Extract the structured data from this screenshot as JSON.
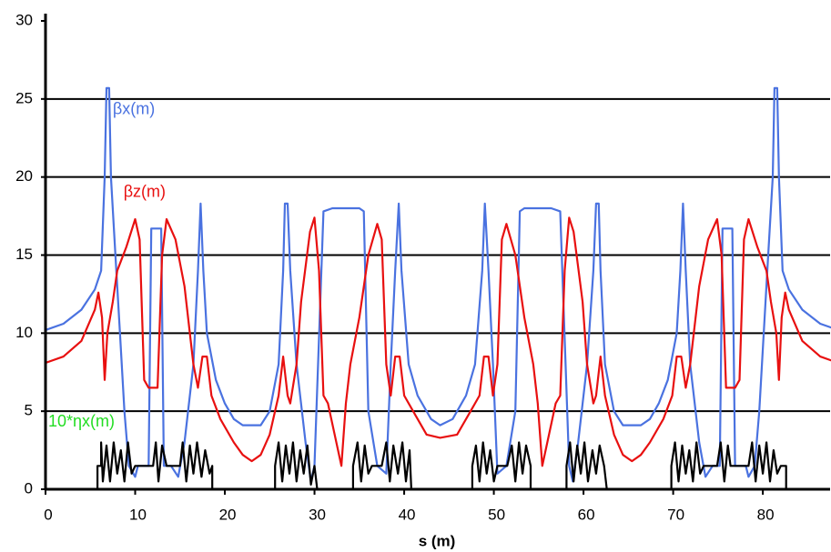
{
  "chart_data": {
    "type": "line",
    "x_label": "s (m)",
    "xlim": [
      0,
      87.5
    ],
    "ylim": [
      0,
      30
    ],
    "xticks": [
      0,
      10,
      20,
      30,
      40,
      50,
      60,
      70,
      80
    ],
    "yticks": [
      0,
      5,
      10,
      15,
      20,
      25,
      30
    ],
    "grid": true,
    "annotations": [
      {
        "text": "βx(m)",
        "color": "#4a72e0",
        "x": 7.5,
        "y": 24.3
      },
      {
        "text": "βz(m)",
        "color": "#e81010",
        "x": 8.7,
        "y": 19
      },
      {
        "text": "10*ηx(m)",
        "color": "#22dd22",
        "x": 0.3,
        "y": 4.3
      }
    ],
    "series": [
      {
        "color": "#4a72e0",
        "x": [
          0,
          2,
          4,
          5.5,
          6.2,
          6.6,
          6.8,
          7.1,
          7.3,
          7.8,
          8.3,
          8.8,
          9.3,
          10,
          10.3,
          11.5,
          11.8,
          12.9,
          13.2,
          14,
          14.8,
          15.5,
          16.5,
          17,
          17.3,
          17.6,
          18,
          19,
          20,
          21,
          22,
          24,
          25,
          26,
          26.5,
          26.7,
          27,
          27.3,
          28,
          29,
          29.6,
          30,
          31,
          32,
          35,
          35.5,
          36,
          37,
          38,
          38.5,
          39,
          39.4,
          39.7,
          40.5,
          41.5,
          43,
          44,
          45.4,
          46.9,
          47.9,
          48.7,
          49,
          49.4,
          49.9,
          50.4,
          51.4,
          52.4,
          52.9,
          53.4,
          56.4,
          57.4,
          58.4,
          58.8,
          59.4,
          60.4,
          61.1,
          61.4,
          61.7,
          61.9,
          62.4,
          63.4,
          64.4,
          66.4,
          67.4,
          68.4,
          69.4,
          70.4,
          70.8,
          71.1,
          71.4,
          71.9,
          72.9,
          73.6,
          74.4,
          75.2,
          75.5,
          76.6,
          76.9,
          78.1,
          78.4,
          79.1,
          79.6,
          80.1,
          80.6,
          81.1,
          81.3,
          81.6,
          81.8,
          82.2,
          82.9,
          84.4,
          86.4,
          88.4
        ],
        "values": [
          10.2,
          10.6,
          11.5,
          12.8,
          14,
          20,
          25.7,
          25.7,
          20,
          15,
          10,
          5,
          1.5,
          0.8,
          1.5,
          1.5,
          16.7,
          16.7,
          1.5,
          1.5,
          0.8,
          3,
          8,
          14,
          18.3,
          14,
          10,
          7,
          5.5,
          4.5,
          4.1,
          4.1,
          5,
          8,
          14,
          18.3,
          18.3,
          14,
          8,
          3,
          0.5,
          1.5,
          17.8,
          18,
          18,
          17.8,
          5,
          1.5,
          1,
          8,
          14,
          18.3,
          14,
          8,
          6,
          4.5,
          4.1,
          4.5,
          6,
          8,
          14,
          18.3,
          14,
          8,
          1,
          1.5,
          5,
          17.8,
          18,
          18,
          17.8,
          1.5,
          0.5,
          3,
          8,
          14,
          18.3,
          18.3,
          14,
          8,
          5,
          4.1,
          4.1,
          4.5,
          5.5,
          7,
          10,
          14,
          18.3,
          14,
          8,
          3,
          0.8,
          1.5,
          1.5,
          16.7,
          16.7,
          1.5,
          1.5,
          0.8,
          1.5,
          5,
          10,
          15,
          20,
          25.7,
          25.7,
          20,
          14,
          12.8,
          11.5,
          10.6,
          10.2
        ]
      },
      {
        "color": "#e81010",
        "x": [
          0,
          2,
          4,
          5.5,
          5.9,
          6.3,
          6.6,
          6.9,
          7.5,
          8,
          9,
          10,
          10.5,
          11,
          11.5,
          12.5,
          13,
          13.5,
          14.5,
          15.5,
          16.5,
          17,
          17.5,
          18,
          18.5,
          19.5,
          21,
          22,
          23,
          24,
          25,
          26,
          26.5,
          27,
          27.3,
          28,
          28.5,
          29.5,
          30,
          30.5,
          31,
          31.5,
          33,
          33.5,
          34,
          35,
          36,
          37,
          37.5,
          38,
          38.5,
          39,
          39.5,
          40,
          41,
          42.5,
          44,
          45.9,
          47.4,
          48.4,
          48.9,
          49.4,
          49.9,
          50.4,
          50.9,
          51.4,
          52.4,
          53.4,
          54.4,
          54.9,
          55.4,
          56.9,
          57.4,
          57.9,
          58.4,
          58.9,
          59.9,
          60.4,
          61.1,
          61.4,
          61.9,
          62.4,
          63.4,
          64.4,
          65.4,
          66.4,
          67.4,
          68.9,
          69.9,
          70.4,
          70.9,
          71.4,
          71.9,
          72.9,
          73.9,
          74.9,
          75.4,
          75.9,
          76.9,
          77.4,
          77.9,
          78.4,
          79.4,
          80.4,
          80.9,
          81.5,
          81.8,
          82.1,
          82.5,
          82.9,
          84.4,
          86.4,
          88.4
        ],
        "values": [
          8.1,
          8.5,
          9.5,
          11.5,
          12.6,
          11,
          7,
          10,
          12,
          14,
          15.5,
          17.3,
          16,
          7,
          6.5,
          6.5,
          15,
          17.3,
          16,
          13,
          8,
          6.5,
          8.5,
          8.5,
          6,
          4.5,
          3,
          2.2,
          1.8,
          2.2,
          3.5,
          6,
          8.5,
          6,
          5.5,
          8,
          12,
          16.5,
          17.4,
          14,
          6,
          5.5,
          1.5,
          5.5,
          8,
          11,
          15,
          17,
          16,
          8,
          6,
          8.5,
          8.5,
          6,
          5,
          3.5,
          3.3,
          3.5,
          5,
          6,
          8.5,
          8.5,
          6,
          8,
          16,
          17,
          15,
          11,
          8,
          5.5,
          1.5,
          5.5,
          6,
          14,
          17.4,
          16.5,
          12,
          8,
          5.5,
          6,
          8.5,
          6,
          3.5,
          2.2,
          1.8,
          2.2,
          3,
          4.5,
          6,
          8.5,
          8.5,
          6.5,
          8,
          13,
          16,
          17.3,
          15,
          6.5,
          6.5,
          7,
          16,
          17.3,
          15.5,
          14,
          12,
          10,
          7,
          11,
          12.6,
          11.5,
          9.5,
          8.5,
          8.1
        ]
      },
      {
        "color": "#000000",
        "x": [
          0,
          5.8,
          5.8,
          6.2,
          6.2,
          6.4,
          6.8,
          7.2,
          7.6,
          8,
          8.4,
          8.8,
          9.2,
          9.6,
          10,
          12,
          12.3,
          12.6,
          13,
          13.5,
          15,
          15.3,
          15.7,
          16.1,
          16.5,
          16.9,
          17.4,
          17.8,
          18.3,
          18.6,
          18.6,
          25.6,
          25.6,
          26,
          26.4,
          26.8,
          27.2,
          27.6,
          28,
          28.4,
          28.8,
          29.2,
          29.6,
          30,
          30.3,
          34.3,
          34.3,
          34.8,
          35.2,
          35.6,
          36,
          36.4,
          37.5,
          38,
          38.4,
          38.8,
          39.3,
          39.8,
          40.2,
          40.6,
          40.8,
          47.6,
          47.6,
          48,
          48.4,
          48.8,
          49.2,
          49.6,
          50,
          50.4,
          51.5,
          52,
          52.4,
          52.8,
          53.2,
          53.6,
          54.1,
          54.1,
          58.1,
          58.1,
          58.5,
          58.9,
          59.3,
          59.7,
          60.1,
          60.5,
          61,
          61.4,
          61.8,
          62.3,
          62.6,
          69.8,
          69.8,
          70.2,
          70.6,
          71,
          71.4,
          71.8,
          72.2,
          72.6,
          73,
          73.4,
          74.9,
          75.3,
          75.7,
          76.1,
          76.4,
          78.4,
          78.8,
          79.2,
          79.6,
          80,
          80.4,
          80.8,
          81.2,
          81.6,
          82,
          82.6,
          82.6,
          87.5
        ],
        "values": [
          0,
          0,
          1.5,
          1.5,
          3,
          0.5,
          2.8,
          0.5,
          3,
          1,
          2.5,
          0.5,
          3,
          1,
          1.5,
          1.5,
          3,
          0.5,
          2.8,
          1.5,
          1.5,
          3,
          0.5,
          2.8,
          1,
          3,
          0.8,
          2.5,
          1,
          1.5,
          0,
          0,
          1.5,
          3,
          0.5,
          2.8,
          1,
          3,
          0.5,
          2.5,
          1,
          2.8,
          0.3,
          1.5,
          0,
          0,
          1.5,
          3,
          0.5,
          2.8,
          1,
          1.5,
          1.5,
          3,
          0.5,
          2.8,
          1,
          3,
          0.5,
          2.5,
          0,
          0,
          1.5,
          2.8,
          0.5,
          3,
          1,
          2.5,
          0.5,
          1.5,
          1.5,
          2.8,
          0.5,
          3,
          1,
          2.8,
          1.5,
          0,
          0,
          1.5,
          3,
          0.5,
          2.8,
          1,
          3,
          0.5,
          2.5,
          1,
          2.8,
          1.5,
          0,
          0,
          1.5,
          3,
          0.5,
          2.8,
          1,
          2.5,
          0.5,
          3,
          1,
          1.5,
          1.5,
          3,
          0.5,
          2.8,
          1.5,
          1.5,
          3,
          0.5,
          2.8,
          1,
          3,
          0.5,
          2.5,
          1,
          1.5,
          1.5,
          0,
          0
        ]
      }
    ]
  }
}
